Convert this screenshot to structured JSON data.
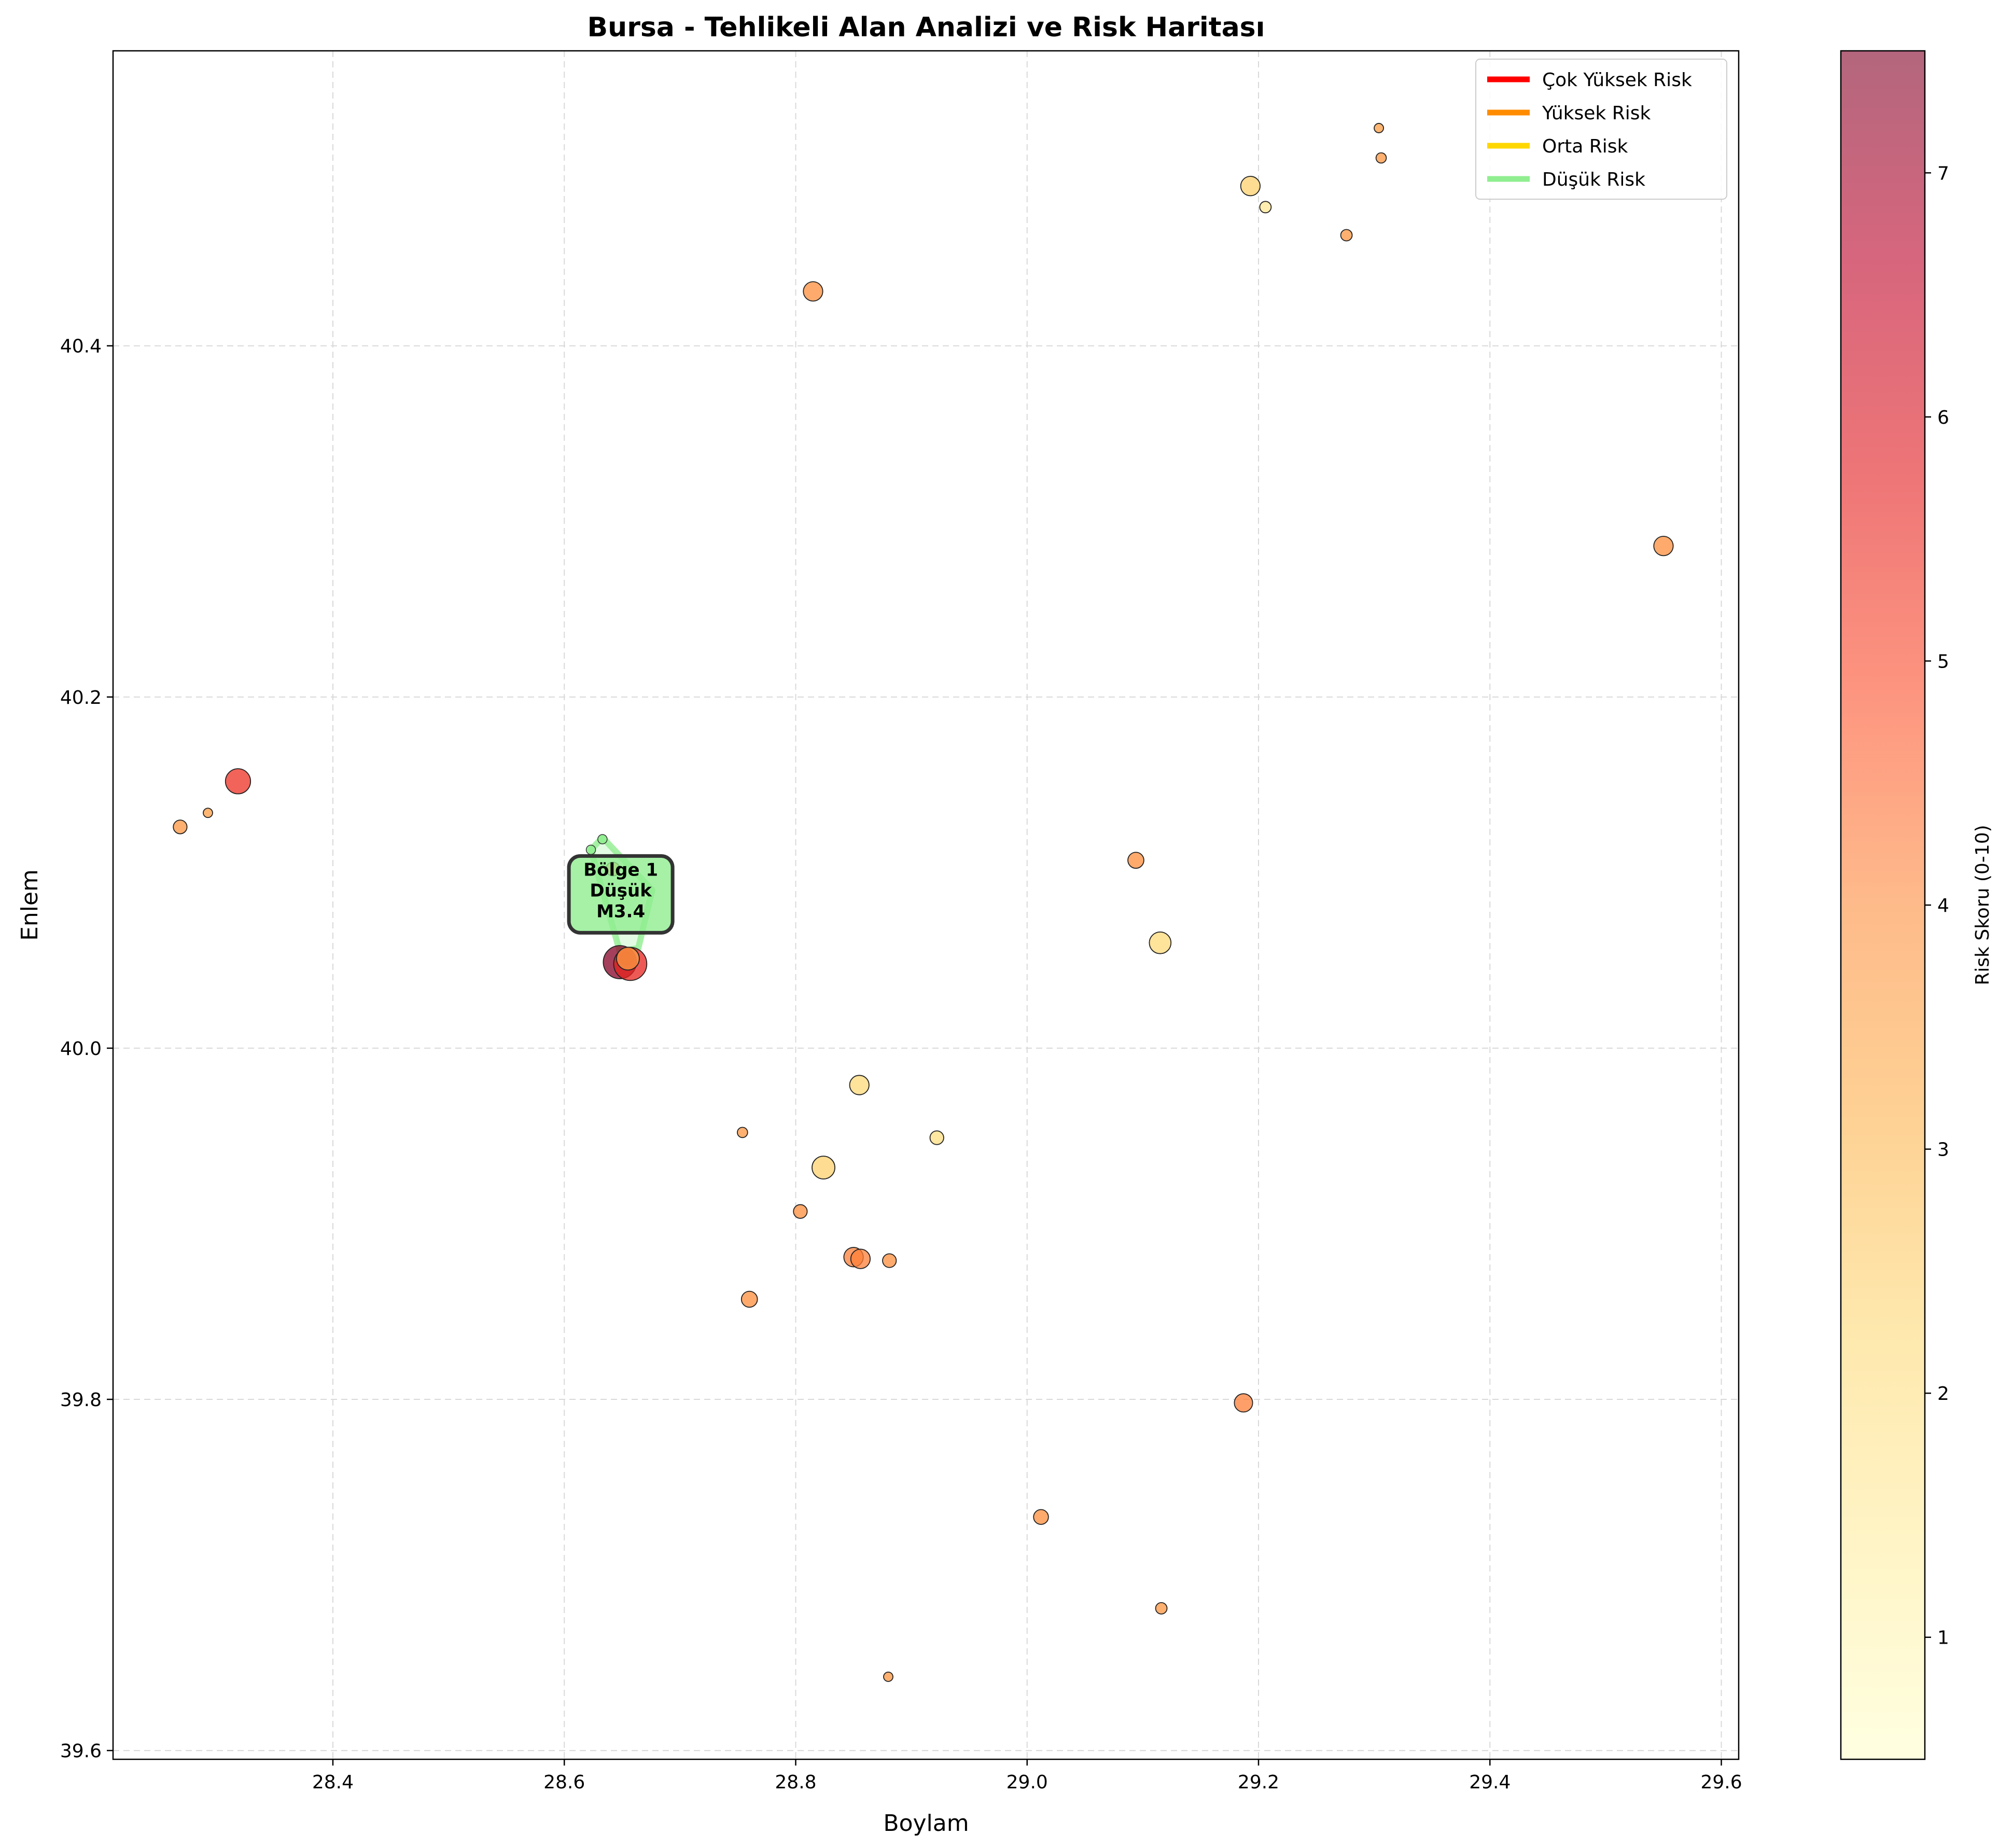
{
  "colors": {
    "very_high": "#ff0000",
    "high": "#ff8c00",
    "medium": "#ffd700",
    "low": "#90ee90",
    "colormap": [
      "#ffffcc",
      "#ffeda0",
      "#fed976",
      "#feb24c",
      "#fd8d3c",
      "#fc4e2a",
      "#e31a1c",
      "#bd0026",
      "#800026"
    ]
  },
  "chart_data": {
    "type": "scatter",
    "title": "Bursa - Tehlikeli Alan Analizi ve Risk Haritası",
    "xlabel": "Boylam",
    "ylabel": "Enlem",
    "xlim": [
      28.21,
      29.615
    ],
    "ylim": [
      39.595,
      40.568
    ],
    "xticks": [
      "28.4",
      "28.6",
      "28.8",
      "29.0",
      "29.2",
      "29.4",
      "29.6"
    ],
    "xtick_values": [
      28.4,
      28.6,
      28.8,
      29.0,
      29.2,
      29.4,
      29.6
    ],
    "yticks": [
      "39.6",
      "39.8",
      "40.0",
      "40.2",
      "40.4"
    ],
    "ytick_values": [
      39.6,
      39.8,
      40.0,
      40.2,
      40.4
    ],
    "grid": true,
    "legend_position": "top-right",
    "legend": [
      {
        "label": "Çok Yüksek Risk",
        "color": "#ff0000"
      },
      {
        "label": "Yüksek Risk",
        "color": "#ff8c00"
      },
      {
        "label": "Orta Risk",
        "color": "#ffd700"
      },
      {
        "label": "Düşük Risk",
        "color": "#90ee90"
      }
    ],
    "colorbar": {
      "label": "Risk Skoru (0-10)",
      "range": [
        0.5,
        7.5
      ],
      "ticks": [
        "1",
        "2",
        "3",
        "4",
        "5",
        "6",
        "7"
      ],
      "tick_values": [
        1,
        2,
        3,
        4,
        5,
        6,
        7
      ]
    },
    "points": [
      {
        "x": 28.318,
        "y": 40.152,
        "risk": 5.4,
        "mag": 3.4
      },
      {
        "x": 28.268,
        "y": 40.126,
        "risk": 3.8,
        "mag": 2.4
      },
      {
        "x": 28.292,
        "y": 40.134,
        "risk": 3.6,
        "mag": 2.0
      },
      {
        "x": 28.642,
        "y": 40.102,
        "risk": 4.0,
        "mag": 2.4
      },
      {
        "x": 28.648,
        "y": 40.049,
        "risk": 7.4,
        "mag": 4.1
      },
      {
        "x": 28.657,
        "y": 40.048,
        "risk": 5.6,
        "mag": 4.1
      },
      {
        "x": 28.655,
        "y": 40.051,
        "risk": 3.6,
        "mag": 3.2
      },
      {
        "x": 28.815,
        "y": 40.431,
        "risk": 4.0,
        "mag": 2.9
      },
      {
        "x": 29.193,
        "y": 40.491,
        "risk": 2.4,
        "mag": 2.9
      },
      {
        "x": 29.206,
        "y": 40.479,
        "risk": 1.6,
        "mag": 2.2
      },
      {
        "x": 29.304,
        "y": 40.524,
        "risk": 3.6,
        "mag": 1.9
      },
      {
        "x": 29.306,
        "y": 40.507,
        "risk": 3.8,
        "mag": 2.1
      },
      {
        "x": 29.276,
        "y": 40.463,
        "risk": 3.8,
        "mag": 2.2
      },
      {
        "x": 29.55,
        "y": 40.286,
        "risk": 4.0,
        "mag": 2.9
      },
      {
        "x": 29.094,
        "y": 40.107,
        "risk": 4.0,
        "mag": 2.6
      },
      {
        "x": 29.115,
        "y": 40.06,
        "risk": 2.2,
        "mag": 3.1
      },
      {
        "x": 28.855,
        "y": 39.979,
        "risk": 2.2,
        "mag": 2.9
      },
      {
        "x": 28.754,
        "y": 39.952,
        "risk": 3.8,
        "mag": 2.1
      },
      {
        "x": 28.922,
        "y": 39.949,
        "risk": 2.0,
        "mag": 2.4
      },
      {
        "x": 28.824,
        "y": 39.932,
        "risk": 2.4,
        "mag": 3.2
      },
      {
        "x": 28.804,
        "y": 39.907,
        "risk": 4.0,
        "mag": 2.4
      },
      {
        "x": 28.85,
        "y": 39.881,
        "risk": 4.2,
        "mag": 2.9
      },
      {
        "x": 28.856,
        "y": 39.88,
        "risk": 4.2,
        "mag": 2.9
      },
      {
        "x": 28.881,
        "y": 39.879,
        "risk": 4.0,
        "mag": 2.4
      },
      {
        "x": 28.76,
        "y": 39.857,
        "risk": 4.0,
        "mag": 2.6
      },
      {
        "x": 29.187,
        "y": 39.798,
        "risk": 4.2,
        "mag": 2.8
      },
      {
        "x": 29.012,
        "y": 39.733,
        "risk": 4.0,
        "mag": 2.5
      },
      {
        "x": 29.116,
        "y": 39.681,
        "risk": 3.8,
        "mag": 2.2
      },
      {
        "x": 28.88,
        "y": 39.642,
        "risk": 3.8,
        "mag": 2.0
      }
    ],
    "zones": [
      {
        "label_lines": [
          "Bölge 1",
          "Düşük",
          "M3.4"
        ],
        "level": "low",
        "polygon": [
          [
            28.633,
            40.12
          ],
          [
            28.623,
            40.113
          ],
          [
            28.648,
            40.055
          ],
          [
            28.664,
            40.057
          ],
          [
            28.676,
            40.09
          ]
        ],
        "points": [
          {
            "x": 28.633,
            "y": 40.119,
            "risk": 1.0,
            "mag": 1.9
          },
          {
            "x": 28.623,
            "y": 40.113,
            "risk": 1.0,
            "mag": 2.0
          },
          {
            "x": 28.654,
            "y": 40.051,
            "risk": 1.0,
            "mag": 2.3
          }
        ]
      }
    ]
  }
}
